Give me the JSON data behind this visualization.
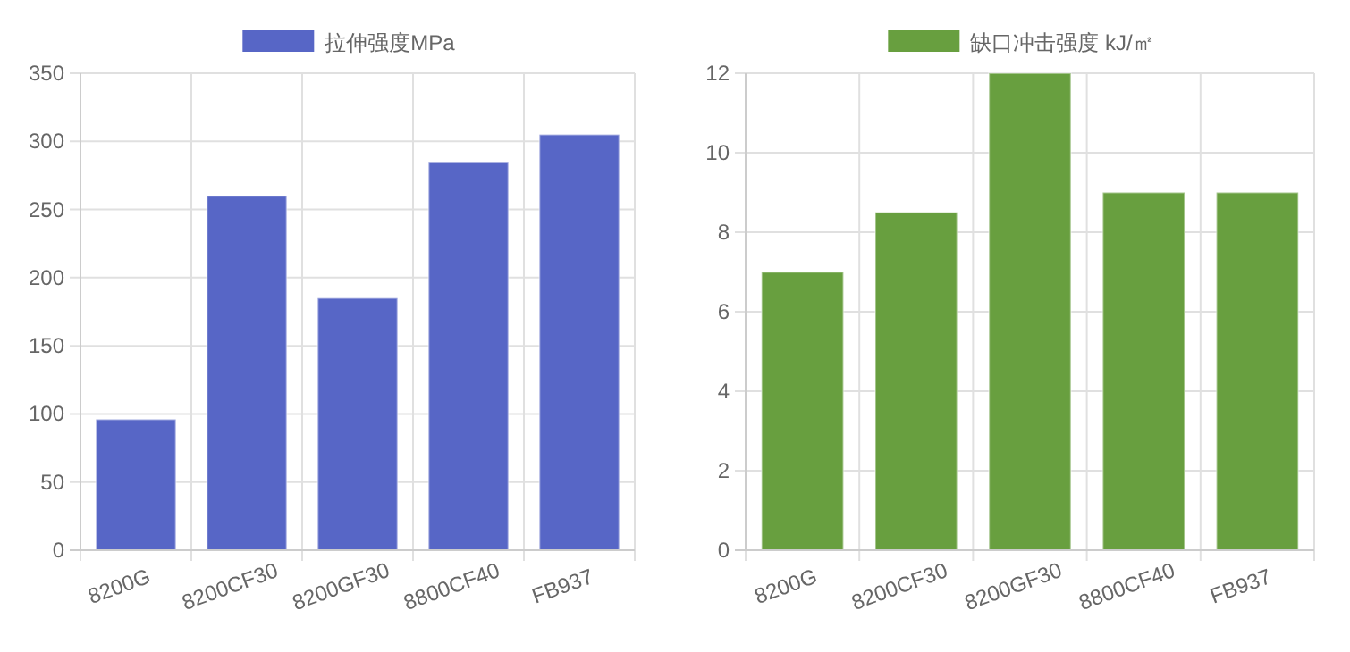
{
  "chart_data": [
    {
      "type": "bar",
      "categories": [
        "8200G",
        "8200CF30",
        "8200GF30",
        "8800CF40",
        "FB937"
      ],
      "series": [
        {
          "name": "拉伸强度MPa",
          "color": "#5766c6",
          "values": [
            96,
            260,
            185,
            285,
            305
          ]
        }
      ],
      "ylim": [
        0,
        350
      ],
      "yticks": [
        0,
        50,
        100,
        150,
        200,
        250,
        300,
        350
      ],
      "grid": true,
      "legend": "top"
    },
    {
      "type": "bar",
      "categories": [
        "8200G",
        "8200CF30",
        "8200GF30",
        "8800CF40",
        "FB937"
      ],
      "series": [
        {
          "name": "缺口冲击强度 kJ/㎡",
          "color": "#689f3f",
          "values": [
            7,
            8.5,
            12,
            9,
            9
          ]
        }
      ],
      "ylim": [
        0,
        12
      ],
      "yticks": [
        0,
        2,
        4,
        6,
        8,
        10,
        12
      ],
      "grid": true,
      "legend": "top"
    }
  ]
}
